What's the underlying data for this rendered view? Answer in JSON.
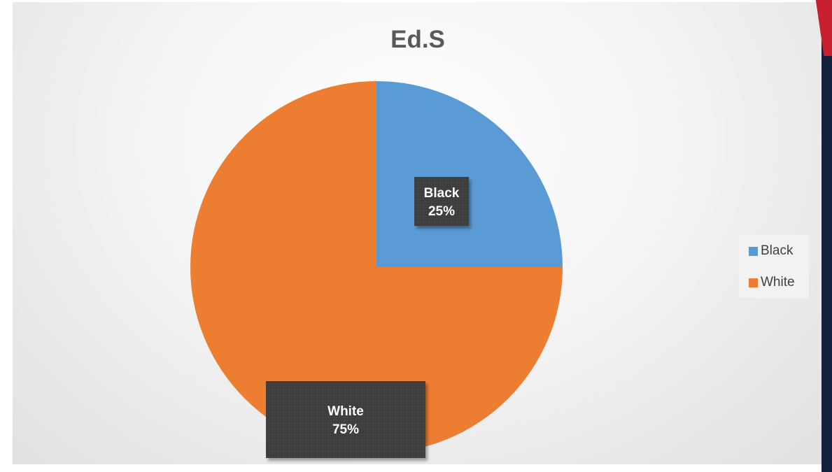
{
  "chart_data": {
    "type": "pie",
    "title": "Ed.S",
    "categories": [
      "Black",
      "White"
    ],
    "values": [
      25,
      75
    ],
    "value_labels": [
      "25%",
      "75%"
    ],
    "colors": [
      "#5b9bd5",
      "#ed7d31"
    ],
    "legend_position": "right",
    "data_label_style": "dark-box"
  }
}
